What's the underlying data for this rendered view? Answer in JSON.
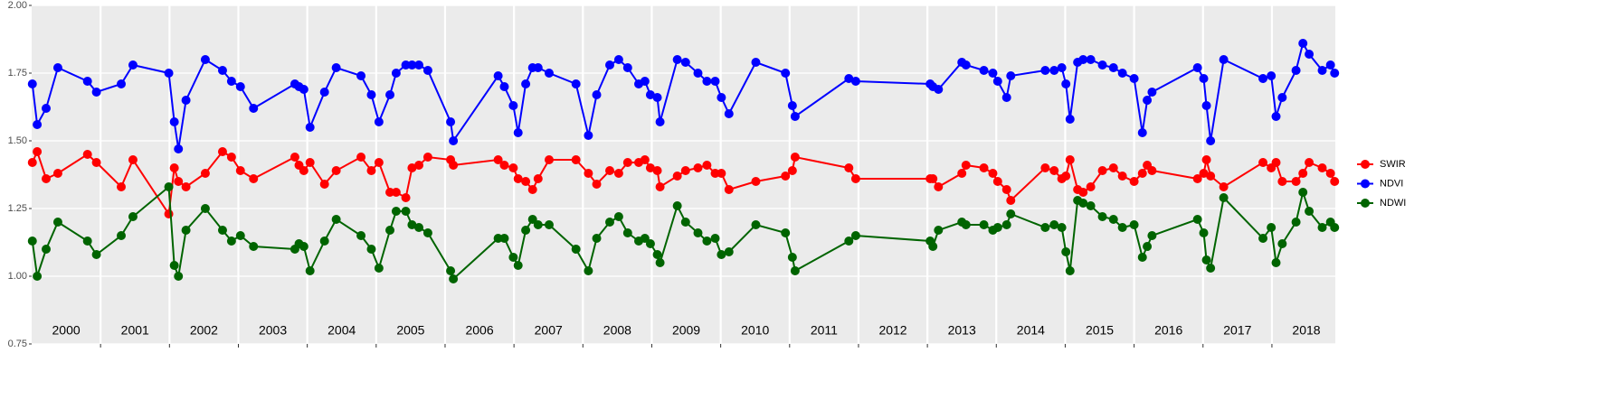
{
  "chart_data": {
    "type": "line",
    "x": [
      2000.01,
      2000.08,
      2000.21,
      2000.38,
      2000.81,
      2000.94,
      2001.3,
      2001.47,
      2001.99,
      2002.07,
      2002.13,
      2002.24,
      2002.52,
      2002.77,
      2002.9,
      2003.03,
      2003.22,
      2003.82,
      2003.88,
      2003.95,
      2004.04,
      2004.25,
      2004.42,
      2004.78,
      2004.93,
      2005.04,
      2005.2,
      2005.29,
      2005.43,
      2005.52,
      2005.62,
      2005.75,
      2006.08,
      2006.12,
      2006.77,
      2006.86,
      2006.99,
      2007.06,
      2007.17,
      2007.27,
      2007.35,
      2007.51,
      2007.9,
      2008.08,
      2008.2,
      2008.39,
      2008.52,
      2008.65,
      2008.81,
      2008.9,
      2008.98,
      2009.08,
      2009.12,
      2009.37,
      2009.49,
      2009.67,
      2009.8,
      2009.92,
      2010.01,
      2010.12,
      2010.51,
      2010.94,
      2011.04,
      2011.08,
      2011.86,
      2011.96,
      2013.04,
      2013.08,
      2013.16,
      2013.5,
      2013.56,
      2013.82,
      2013.95,
      2014.02,
      2014.15,
      2014.21,
      2014.71,
      2014.84,
      2014.95,
      2015.01,
      2015.07,
      2015.18,
      2015.26,
      2015.37,
      2015.54,
      2015.7,
      2015.83,
      2016.0,
      2016.12,
      2016.19,
      2016.26,
      2016.92,
      2017.01,
      2017.05,
      2017.11,
      2017.3,
      2017.87,
      2017.99,
      2018.06,
      2018.15,
      2018.35,
      2018.45,
      2018.54,
      2018.73,
      2018.85,
      2018.91
    ],
    "series": [
      {
        "name": "SWIR",
        "color": "#ff0000",
        "values": [
          1.42,
          1.46,
          1.36,
          1.38,
          1.45,
          1.42,
          1.33,
          1.43,
          1.23,
          1.4,
          1.35,
          1.33,
          1.38,
          1.46,
          1.44,
          1.39,
          1.36,
          1.44,
          1.41,
          1.39,
          1.42,
          1.34,
          1.39,
          1.44,
          1.39,
          1.42,
          1.31,
          1.31,
          1.29,
          1.4,
          1.41,
          1.44,
          1.43,
          1.41,
          1.43,
          1.41,
          1.4,
          1.36,
          1.35,
          1.32,
          1.36,
          1.43,
          1.43,
          1.38,
          1.34,
          1.39,
          1.38,
          1.42,
          1.42,
          1.43,
          1.4,
          1.39,
          1.33,
          1.37,
          1.39,
          1.4,
          1.41,
          1.38,
          1.38,
          1.32,
          1.35,
          1.37,
          1.39,
          1.44,
          1.4,
          1.36,
          1.36,
          1.36,
          1.33,
          1.38,
          1.41,
          1.4,
          1.38,
          1.35,
          1.32,
          1.28,
          1.4,
          1.39,
          1.36,
          1.37,
          1.43,
          1.32,
          1.31,
          1.33,
          1.39,
          1.4,
          1.37,
          1.35,
          1.38,
          1.41,
          1.39,
          1.36,
          1.38,
          1.43,
          1.37,
          1.33,
          1.42,
          1.4,
          1.42,
          1.35,
          1.35,
          1.38,
          1.42,
          1.4,
          1.38,
          1.35
        ]
      },
      {
        "name": "NDVI",
        "color": "#0000ff",
        "values": [
          1.71,
          1.56,
          1.62,
          1.77,
          1.72,
          1.68,
          1.71,
          1.78,
          1.75,
          1.57,
          1.47,
          1.65,
          1.8,
          1.76,
          1.72,
          1.7,
          1.62,
          1.71,
          1.7,
          1.69,
          1.55,
          1.68,
          1.77,
          1.74,
          1.67,
          1.57,
          1.67,
          1.75,
          1.78,
          1.78,
          1.78,
          1.76,
          1.57,
          1.5,
          1.74,
          1.7,
          1.63,
          1.53,
          1.71,
          1.77,
          1.77,
          1.75,
          1.71,
          1.52,
          1.67,
          1.78,
          1.8,
          1.77,
          1.71,
          1.72,
          1.67,
          1.66,
          1.57,
          1.8,
          1.79,
          1.75,
          1.72,
          1.72,
          1.66,
          1.6,
          1.79,
          1.75,
          1.63,
          1.59,
          1.73,
          1.72,
          1.71,
          1.7,
          1.69,
          1.79,
          1.78,
          1.76,
          1.75,
          1.72,
          1.66,
          1.74,
          1.76,
          1.76,
          1.77,
          1.71,
          1.58,
          1.79,
          1.8,
          1.8,
          1.78,
          1.77,
          1.75,
          1.73,
          1.53,
          1.65,
          1.68,
          1.77,
          1.73,
          1.63,
          1.5,
          1.8,
          1.73,
          1.74,
          1.59,
          1.66,
          1.76,
          1.86,
          1.82,
          1.76,
          1.78,
          1.75
        ]
      },
      {
        "name": "NDWI",
        "color": "#006400",
        "values": [
          1.13,
          1.0,
          1.1,
          1.2,
          1.13,
          1.08,
          1.15,
          1.22,
          1.33,
          1.04,
          1.0,
          1.17,
          1.25,
          1.17,
          1.13,
          1.15,
          1.11,
          1.1,
          1.12,
          1.11,
          1.02,
          1.13,
          1.21,
          1.15,
          1.1,
          1.03,
          1.17,
          1.24,
          1.24,
          1.19,
          1.18,
          1.16,
          1.02,
          0.99,
          1.14,
          1.14,
          1.07,
          1.04,
          1.17,
          1.21,
          1.19,
          1.19,
          1.1,
          1.02,
          1.14,
          1.2,
          1.22,
          1.16,
          1.13,
          1.14,
          1.12,
          1.08,
          1.05,
          1.26,
          1.2,
          1.16,
          1.13,
          1.14,
          1.08,
          1.09,
          1.19,
          1.16,
          1.07,
          1.02,
          1.13,
          1.15,
          1.13,
          1.11,
          1.17,
          1.2,
          1.19,
          1.19,
          1.17,
          1.18,
          1.19,
          1.23,
          1.18,
          1.19,
          1.18,
          1.09,
          1.02,
          1.28,
          1.27,
          1.26,
          1.22,
          1.21,
          1.18,
          1.19,
          1.07,
          1.11,
          1.15,
          1.21,
          1.16,
          1.06,
          1.03,
          1.29,
          1.14,
          1.18,
          1.05,
          1.12,
          1.2,
          1.31,
          1.24,
          1.18,
          1.2,
          1.18
        ]
      }
    ],
    "xlim": [
      2000,
      2018.92
    ],
    "xticks": [
      {
        "value": 2000.5,
        "label": "2000"
      },
      {
        "value": 2001.5,
        "label": "2001"
      },
      {
        "value": 2002.5,
        "label": "2002"
      },
      {
        "value": 2003.5,
        "label": "2003"
      },
      {
        "value": 2004.5,
        "label": "2004"
      },
      {
        "value": 2005.5,
        "label": "2005"
      },
      {
        "value": 2006.5,
        "label": "2006"
      },
      {
        "value": 2007.5,
        "label": "2007"
      },
      {
        "value": 2008.5,
        "label": "2008"
      },
      {
        "value": 2009.5,
        "label": "2009"
      },
      {
        "value": 2010.5,
        "label": "2010"
      },
      {
        "value": 2011.5,
        "label": "2011"
      },
      {
        "value": 2012.5,
        "label": "2012"
      },
      {
        "value": 2013.5,
        "label": "2013"
      },
      {
        "value": 2014.5,
        "label": "2014"
      },
      {
        "value": 2015.5,
        "label": "2015"
      },
      {
        "value": 2016.5,
        "label": "2016"
      },
      {
        "value": 2017.5,
        "label": "2017"
      },
      {
        "value": 2018.5,
        "label": "2018"
      }
    ],
    "xgrid": [
      2001,
      2002,
      2003,
      2004,
      2005,
      2006,
      2007,
      2008,
      2009,
      2010,
      2011,
      2012,
      2013,
      2014,
      2015,
      2016,
      2017,
      2018
    ],
    "ylim": [
      0.75,
      2.0
    ],
    "yticks": [
      {
        "value": 0.75,
        "label": "0.75"
      },
      {
        "value": 1,
        "label": "1.00"
      },
      {
        "value": 1.25,
        "label": "1.25"
      },
      {
        "value": 1.5,
        "label": "1.50"
      },
      {
        "value": 1.75,
        "label": "1.75"
      },
      {
        "value": 2,
        "label": "2.00"
      }
    ],
    "grid": true
  }
}
